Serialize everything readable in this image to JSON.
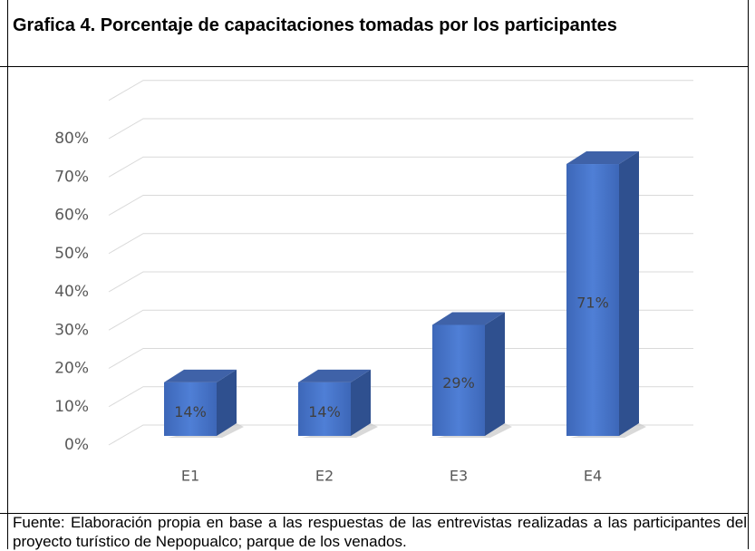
{
  "chart_data": {
    "type": "bar3d",
    "title": "Grafica 4. Porcentaje de capacitaciones tomadas por los participantes",
    "caption": "Fuente: Elaboración propia en base a las respuestas de las entrevistas realizadas a las participantes del proyecto turístico de Nepopualco; parque de los venados.",
    "categories": [
      "E1",
      "E2",
      "E3",
      "E4"
    ],
    "values": [
      14,
      14,
      29,
      71
    ],
    "value_labels": [
      "14%",
      "14%",
      "29%",
      "71%"
    ],
    "color": "#4472c4",
    "ylim": [
      0,
      90
    ],
    "yticks": [
      {
        "value": 0,
        "label": "0%"
      },
      {
        "value": 10,
        "label": "10%"
      },
      {
        "value": 20,
        "label": "20%"
      },
      {
        "value": 30,
        "label": "30%"
      },
      {
        "value": 40,
        "label": "40%"
      },
      {
        "value": 50,
        "label": "50%"
      },
      {
        "value": 60,
        "label": "60%"
      },
      {
        "value": 70,
        "label": "70%"
      },
      {
        "value": 80,
        "label": "80%"
      }
    ],
    "grid": true
  }
}
